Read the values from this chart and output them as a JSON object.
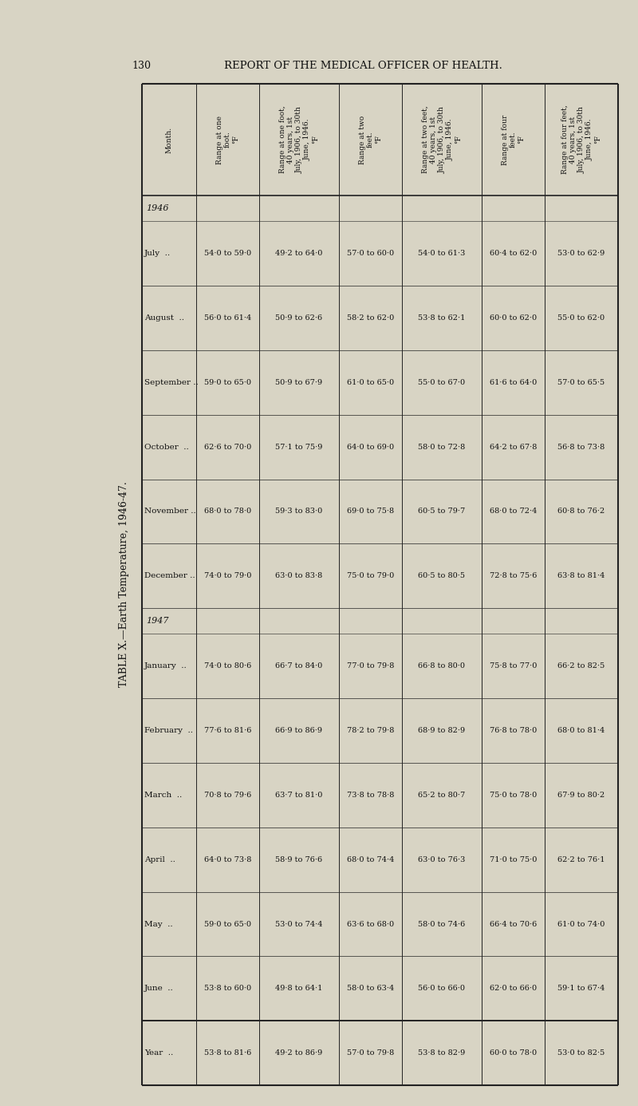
{
  "page_number": "130",
  "page_header": "REPORT OF THE MEDICAL OFFICER OF HEALTH.",
  "table_title": "TABLE X.—Earth Temperature, 1946-47.",
  "col_headers": [
    "Month.",
    "Range at one\nfoot.\n°F",
    "Range at one foot,\n40 years, 1st\nJuly, 1906, to 30th\nJune, 1946.\n°F",
    "Range at two\nfeet.\n°F",
    "Range at two feet,\n40 years, 1st\nJuly, 1906, to 30th\nJune, 1946.\n°F",
    "Range at four\nfeet.\n°F",
    "Range at four feet,\n40 years, 1st\nJuly, 1906, to 30th\nJune, 1946.\n°F"
  ],
  "rows": [
    [
      "1946",
      "",
      "",
      "",
      "",
      "",
      ""
    ],
    [
      "July  ..",
      "54·0 to 59·0",
      "49·2 to 64·0",
      "57·0 to 60·0",
      "54·0 to 61·3",
      "60·4 to 62·0",
      "53·0 to 62·9"
    ],
    [
      "August  ..",
      "56·0 to 61·4",
      "50·9 to 62·6",
      "58·2 to 62·0",
      "53·8 to 62·1",
      "60·0 to 62·0",
      "55·0 to 62·0"
    ],
    [
      "September ..",
      "59·0 to 65·0",
      "50·9 to 67·9",
      "61·0 to 65·0",
      "55·0 to 67·0",
      "61·6 to 64·0",
      "57·0 to 65·5"
    ],
    [
      "October  ..",
      "62·6 to 70·0",
      "57·1 to 75·9",
      "64·0 to 69·0",
      "58·0 to 72·8",
      "64·2 to 67·8",
      "56·8 to 73·8"
    ],
    [
      "November ..",
      "68·0 to 78·0",
      "59·3 to 83·0",
      "69·0 to 75·8",
      "60·5 to 79·7",
      "68·0 to 72·4",
      "60·8 to 76·2"
    ],
    [
      "December ..",
      "74·0 to 79·0",
      "63·0 to 83·8",
      "75·0 to 79·0",
      "60·5 to 80·5",
      "72·8 to 75·6",
      "63·8 to 81·4"
    ],
    [
      "1947",
      "",
      "",
      "",
      "",
      "",
      ""
    ],
    [
      "January  ..",
      "74·0 to 80·6",
      "66·7 to 84·0",
      "77·0 to 79·8",
      "66·8 to 80·0",
      "75·8 to 77·0",
      "66·2 to 82·5"
    ],
    [
      "February  ..",
      "77·6 to 81·6",
      "66·9 to 86·9",
      "78·2 to 79·8",
      "68·9 to 82·9",
      "76·8 to 78·0",
      "68·0 to 81·4"
    ],
    [
      "March  ..",
      "70·8 to 79·6",
      "63·7 to 81·0",
      "73·8 to 78·8",
      "65·2 to 80·7",
      "75·0 to 78·0",
      "67·9 to 80·2"
    ],
    [
      "April  ..",
      "64·0 to 73·8",
      "58·9 to 76·6",
      "68·0 to 74·4",
      "63·0 to 76·3",
      "71·0 to 75·0",
      "62·2 to 76·1"
    ],
    [
      "May  ..",
      "59·0 to 65·0",
      "53·0 to 74·4",
      "63·6 to 68·0",
      "58·0 to 74·6",
      "66·4 to 70·6",
      "61·0 to 74·0"
    ],
    [
      "June  ..",
      "53·8 to 60·0",
      "49·8 to 64·1",
      "58·0 to 63·4",
      "56·0 to 66·0",
      "62·0 to 66·0",
      "59·1 to 67·4"
    ],
    [
      "Year  ..",
      "53·8 to 81·6",
      "49·2 to 86·9",
      "57·0 to 79·8",
      "53·8 to 82·9",
      "60·0 to 78·0",
      "53·0 to 82·5"
    ]
  ],
  "bg_color": "#d8d4c4",
  "text_color": "#111111",
  "line_color": "#222222"
}
